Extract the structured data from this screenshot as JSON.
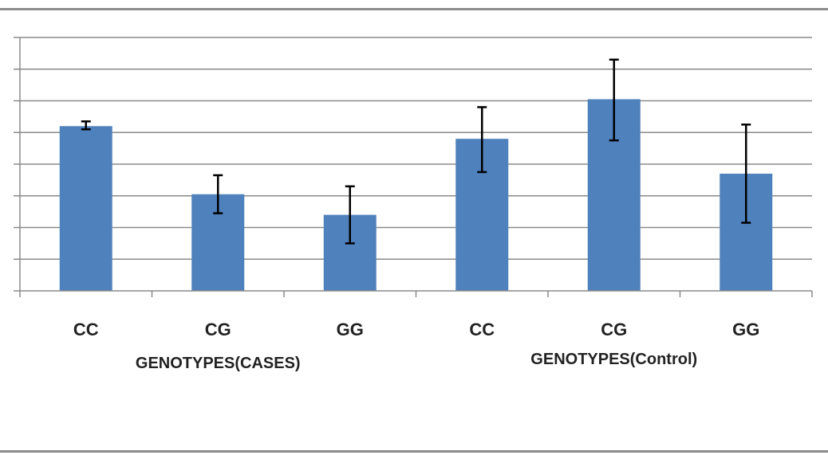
{
  "chart_data": {
    "type": "bar",
    "title": "",
    "xlabel": "",
    "ylabel": "",
    "ylim": [
      0,
      8
    ],
    "yticks_major": 8,
    "grid": true,
    "bar_color": "#4f81bd",
    "error_bar_color": "#000000",
    "categories": [
      "CC",
      "CG",
      "GG",
      "CC",
      "CG",
      "GG"
    ],
    "groups": [
      {
        "label": "GENOTYPES(CASES)",
        "start": 0,
        "end": 2
      },
      {
        "label": "GENOTYPES(Control)",
        "start": 3,
        "end": 5
      }
    ],
    "values": [
      5.2,
      3.05,
      2.4,
      4.8,
      6.05,
      3.7
    ],
    "error_low": [
      5.1,
      2.45,
      1.5,
      3.75,
      4.75,
      2.15
    ],
    "error_high": [
      5.35,
      3.65,
      3.3,
      5.8,
      7.3,
      5.25
    ]
  }
}
